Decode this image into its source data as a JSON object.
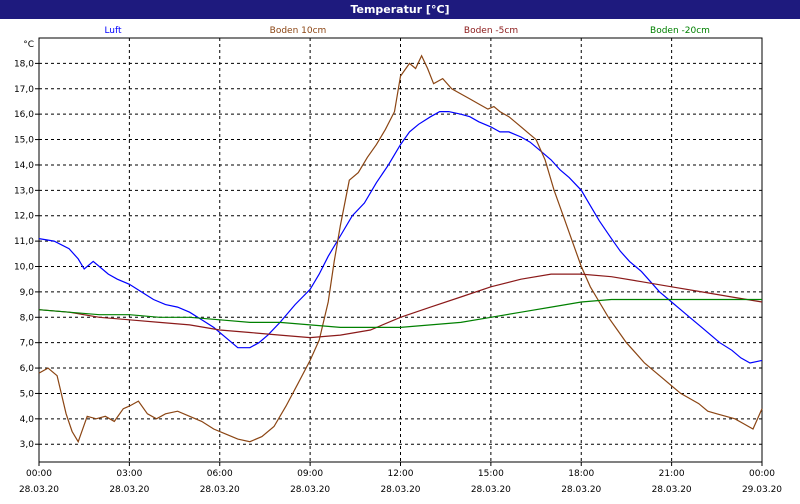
{
  "window": {
    "title": "Temperatur [°C]"
  },
  "chart_data": {
    "type": "line",
    "title": "Temperatur [°C]",
    "ylabel": "°C",
    "ylim": [
      2.3,
      19.0
    ],
    "y_ticks": [
      "3,0",
      "4,0",
      "5,0",
      "6,0",
      "7,0",
      "8,0",
      "9,0",
      "10,0",
      "11,0",
      "12,0",
      "13,0",
      "14,0",
      "15,0",
      "16,0",
      "17,0",
      "18,0"
    ],
    "y_tick_values": [
      3,
      4,
      5,
      6,
      7,
      8,
      9,
      10,
      11,
      12,
      13,
      14,
      15,
      16,
      17,
      18
    ],
    "xlim": [
      0,
      24
    ],
    "x_ticks": [
      {
        "time": "00:00",
        "date": "28.03.20",
        "h": 0
      },
      {
        "time": "03:00",
        "date": "28.03.20",
        "h": 3
      },
      {
        "time": "06:00",
        "date": "28.03.20",
        "h": 6
      },
      {
        "time": "09:00",
        "date": "28.03.20",
        "h": 9
      },
      {
        "time": "12:00",
        "date": "28.03.20",
        "h": 12
      },
      {
        "time": "15:00",
        "date": "28.03.20",
        "h": 15
      },
      {
        "time": "18:00",
        "date": "28.03.20",
        "h": 18
      },
      {
        "time": "21:00",
        "date": "28.03.20",
        "h": 21
      },
      {
        "time": "00:00",
        "date": "29.03.20",
        "h": 24
      }
    ],
    "grid": true,
    "legend_position": "top",
    "series": [
      {
        "name": "Luft",
        "color": "#0000ff",
        "x": [
          0,
          0.5,
          1,
          1.3,
          1.5,
          1.8,
          2,
          2.3,
          2.6,
          3,
          3.4,
          3.8,
          4.2,
          4.6,
          5,
          5.4,
          5.8,
          6.2,
          6.6,
          7,
          7.3,
          7.6,
          8,
          8.5,
          9,
          9.3,
          9.6,
          10,
          10.4,
          10.8,
          11.2,
          11.6,
          12,
          12.3,
          12.6,
          13,
          13.3,
          13.6,
          14,
          14.3,
          14.6,
          15,
          15.3,
          15.6,
          16,
          16.3,
          16.6,
          17,
          17.3,
          17.6,
          18,
          18.3,
          18.6,
          19,
          19.3,
          19.6,
          20,
          20.3,
          20.6,
          21,
          21.3,
          21.6,
          22,
          22.3,
          22.6,
          23,
          23.3,
          23.6,
          24
        ],
        "values": [
          11.1,
          11.0,
          10.7,
          10.3,
          9.9,
          10.2,
          10.0,
          9.7,
          9.5,
          9.3,
          9.0,
          8.7,
          8.5,
          8.4,
          8.2,
          7.9,
          7.6,
          7.2,
          6.8,
          6.8,
          7.0,
          7.3,
          7.8,
          8.5,
          9.1,
          9.7,
          10.4,
          11.2,
          12.0,
          12.5,
          13.3,
          14.0,
          14.8,
          15.3,
          15.6,
          15.9,
          16.1,
          16.1,
          16.0,
          15.9,
          15.7,
          15.5,
          15.3,
          15.3,
          15.1,
          14.9,
          14.6,
          14.2,
          13.8,
          13.5,
          13.0,
          12.4,
          11.8,
          11.1,
          10.6,
          10.2,
          9.8,
          9.4,
          9.0,
          8.6,
          8.3,
          8.0,
          7.6,
          7.3,
          7.0,
          6.7,
          6.4,
          6.2,
          6.3
        ]
      },
      {
        "name": "Boden 10cm",
        "color": "#8b4513",
        "x": [
          0,
          0.3,
          0.6,
          0.9,
          1.1,
          1.3,
          1.6,
          1.9,
          2.2,
          2.5,
          2.8,
          3,
          3.3,
          3.6,
          3.9,
          4.2,
          4.6,
          5,
          5.4,
          5.8,
          6.2,
          6.6,
          7,
          7.4,
          7.8,
          8.2,
          8.6,
          9,
          9.3,
          9.6,
          9.8,
          10,
          10.3,
          10.6,
          10.9,
          11.2,
          11.5,
          11.8,
          12,
          12.3,
          12.5,
          12.7,
          12.9,
          13.1,
          13.4,
          13.7,
          14,
          14.3,
          14.6,
          14.9,
          15.1,
          15.3,
          15.6,
          15.9,
          16.2,
          16.5,
          16.8,
          17.1,
          17.4,
          17.7,
          18,
          18.3,
          18.6,
          18.9,
          19.2,
          19.5,
          19.8,
          20.1,
          20.4,
          20.7,
          21,
          21.3,
          21.6,
          21.9,
          22.2,
          22.5,
          22.8,
          23.1,
          23.4,
          23.7,
          24
        ],
        "values": [
          5.8,
          6.0,
          5.7,
          4.2,
          3.5,
          3.1,
          4.1,
          4.0,
          4.1,
          3.9,
          4.4,
          4.5,
          4.7,
          4.2,
          4.0,
          4.2,
          4.3,
          4.1,
          3.9,
          3.6,
          3.4,
          3.2,
          3.1,
          3.3,
          3.7,
          4.5,
          5.4,
          6.3,
          7.1,
          8.6,
          10.2,
          11.6,
          13.4,
          13.7,
          14.3,
          14.8,
          15.4,
          16.1,
          17.5,
          18.0,
          17.8,
          18.3,
          17.8,
          17.2,
          17.4,
          17.0,
          16.8,
          16.6,
          16.4,
          16.2,
          16.3,
          16.1,
          15.9,
          15.6,
          15.3,
          15.0,
          14.2,
          13.0,
          12.0,
          11.0,
          10.0,
          9.2,
          8.6,
          8.0,
          7.5,
          7.0,
          6.6,
          6.2,
          5.9,
          5.6,
          5.3,
          5.0,
          4.8,
          4.6,
          4.3,
          4.2,
          4.1,
          4.0,
          3.8,
          3.6,
          4.4
        ]
      },
      {
        "name": "Boden -5cm",
        "color": "#8b1a1a",
        "x": [
          0,
          1,
          2,
          3,
          4,
          5,
          6,
          7,
          8,
          9,
          10,
          11,
          12,
          13,
          14,
          15,
          16,
          17,
          18,
          19,
          20,
          21,
          22,
          23,
          24
        ],
        "values": [
          8.3,
          8.2,
          8.0,
          7.9,
          7.8,
          7.7,
          7.5,
          7.4,
          7.3,
          7.2,
          7.3,
          7.5,
          8.0,
          8.4,
          8.8,
          9.2,
          9.5,
          9.7,
          9.7,
          9.6,
          9.4,
          9.2,
          9.0,
          8.8,
          8.6
        ]
      },
      {
        "name": "Boden -20cm",
        "color": "#008000",
        "x": [
          0,
          1,
          2,
          3,
          4,
          5,
          6,
          7,
          8,
          9,
          10,
          11,
          12,
          13,
          14,
          15,
          16,
          17,
          18,
          19,
          20,
          21,
          22,
          23,
          24
        ],
        "values": [
          8.3,
          8.2,
          8.1,
          8.1,
          8.0,
          8.0,
          7.9,
          7.8,
          7.8,
          7.7,
          7.6,
          7.6,
          7.6,
          7.7,
          7.8,
          8.0,
          8.2,
          8.4,
          8.6,
          8.7,
          8.7,
          8.7,
          8.7,
          8.7,
          8.7
        ]
      }
    ]
  }
}
